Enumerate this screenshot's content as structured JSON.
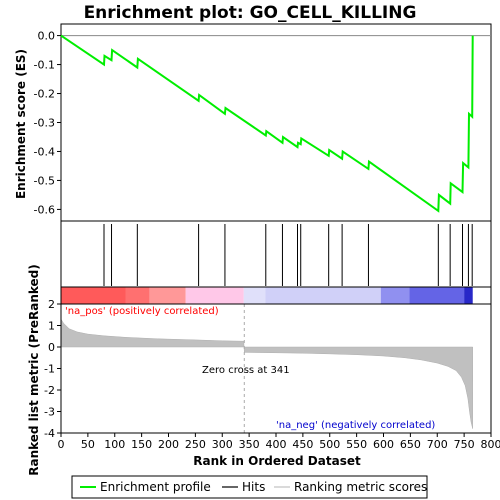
{
  "chart_data": [
    {
      "type": "line",
      "title": "Enrichment plot: GO_CELL_KILLING",
      "ylabel": "Enrichment score (ES)",
      "ylim": [
        -0.64,
        0.04
      ],
      "xlim": [
        0,
        800
      ],
      "yticks": [
        0.0,
        -0.1,
        -0.2,
        -0.3,
        -0.4,
        -0.5,
        -0.6
      ],
      "ytick_labels": [
        "0.0",
        "-0.1",
        "-0.2",
        "-0.3",
        "-0.4",
        "-0.5",
        "-0.6"
      ],
      "line_color": "#00ee00",
      "grid": false,
      "series": [
        {
          "name": "Enrichment profile",
          "x": [
            0,
            80,
            81,
            94,
            95,
            142,
            143,
            256,
            257,
            305,
            306,
            381,
            382,
            412,
            413,
            440,
            441,
            446,
            447,
            498,
            499,
            523,
            524,
            572,
            573,
            702,
            703,
            724,
            725,
            747,
            748,
            758,
            759,
            765,
            766
          ],
          "y": [
            0.0,
            -0.1,
            -0.07,
            -0.085,
            -0.05,
            -0.11,
            -0.08,
            -0.225,
            -0.205,
            -0.27,
            -0.25,
            -0.345,
            -0.33,
            -0.37,
            -0.35,
            -0.385,
            -0.37,
            -0.375,
            -0.355,
            -0.415,
            -0.395,
            -0.425,
            -0.4,
            -0.46,
            -0.435,
            -0.605,
            -0.55,
            -0.58,
            -0.51,
            -0.54,
            -0.44,
            -0.455,
            -0.27,
            -0.28,
            0.0
          ]
        }
      ]
    },
    {
      "type": "hits",
      "name": "Hits",
      "x": [
        80,
        94,
        142,
        256,
        305,
        381,
        412,
        440,
        446,
        498,
        523,
        572,
        702,
        724,
        747,
        758,
        765
      ]
    },
    {
      "type": "area",
      "xlabel": "Rank in Ordered Dataset",
      "ylabel": "Ranked list metric (PreRanked)",
      "xlim": [
        0,
        800
      ],
      "ylim": [
        -4,
        2
      ],
      "xticks": [
        0,
        50,
        100,
        150,
        200,
        250,
        300,
        350,
        400,
        450,
        500,
        550,
        600,
        650,
        700,
        750,
        800
      ],
      "xtick_labels": [
        "0",
        "50",
        "100",
        "150",
        "200",
        "250",
        "300",
        "350",
        "400",
        "450",
        "500",
        "550",
        "600",
        "650",
        "700",
        "750",
        "800"
      ],
      "yticks": [
        2,
        1,
        0,
        -1,
        -2,
        -3,
        -4
      ],
      "ytick_labels": [
        "2",
        "1",
        "0",
        "-1",
        "-2",
        "-3",
        "-4"
      ],
      "fill_color": "#c0c0c0",
      "series": [
        {
          "name": "Ranking metric scores",
          "x": [
            0,
            5,
            15,
            30,
            50,
            80,
            120,
            180,
            250,
            300,
            340,
            341,
            400,
            450,
            500,
            550,
            600,
            640,
            670,
            700,
            720,
            735,
            745,
            752,
            757,
            760,
            763,
            766
          ],
          "y": [
            1.3,
            1.1,
            0.85,
            0.7,
            0.6,
            0.52,
            0.45,
            0.38,
            0.33,
            0.29,
            0.27,
            -0.25,
            -0.27,
            -0.29,
            -0.32,
            -0.36,
            -0.42,
            -0.5,
            -0.6,
            -0.75,
            -0.9,
            -1.1,
            -1.4,
            -1.8,
            -2.4,
            -3.0,
            -3.5,
            -3.8
          ]
        }
      ],
      "annotations": [
        {
          "text": "'na_pos' (positively correlated)",
          "color": "#ff0000"
        },
        {
          "text": "Zero cross at 341",
          "x": 341,
          "color": "#000000"
        },
        {
          "text": "'na_neg' (negatively correlated)",
          "color": "#0000cc"
        }
      ]
    }
  ],
  "colorbar": {
    "segments": [
      {
        "from": 0,
        "to": 120,
        "color": "#ff5a5a"
      },
      {
        "from": 120,
        "to": 165,
        "color": "#ff7070"
      },
      {
        "from": 165,
        "to": 232,
        "color": "#ff9898"
      },
      {
        "from": 232,
        "to": 340,
        "color": "#ffc8e8"
      },
      {
        "from": 340,
        "to": 380,
        "color": "#e0e0fa"
      },
      {
        "from": 380,
        "to": 595,
        "color": "#d0d0f8"
      },
      {
        "from": 595,
        "to": 648,
        "color": "#9090f0"
      },
      {
        "from": 648,
        "to": 750,
        "color": "#6464e6"
      },
      {
        "from": 750,
        "to": 766,
        "color": "#2828c8"
      }
    ]
  },
  "legend": {
    "items": [
      {
        "label": "Enrichment profile",
        "color": "#00ee00"
      },
      {
        "label": "Hits",
        "color": "#000000"
      },
      {
        "label": "Ranking metric scores",
        "color": "#c0c0c0"
      }
    ]
  }
}
